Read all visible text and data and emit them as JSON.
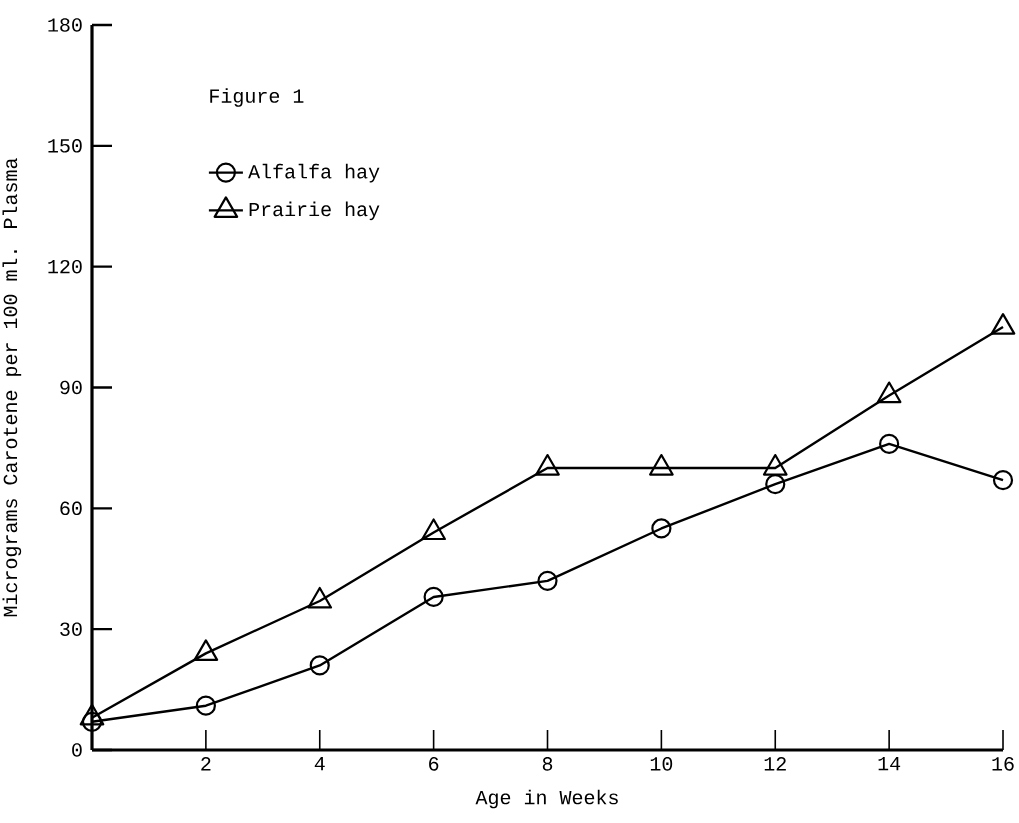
{
  "chart_data": {
    "type": "line",
    "xlabel": "Age in Weeks",
    "ylabel": "Micrograms Carotene per 100 ml. Plasma",
    "annotations": [
      "Figure 1"
    ],
    "x": [
      0,
      2,
      4,
      6,
      8,
      10,
      12,
      14,
      16
    ],
    "series": [
      {
        "name": "Alfalfa hay",
        "color": "#000000",
        "marker": "circle",
        "values": [
          7,
          11,
          21,
          38,
          42,
          55,
          66,
          76,
          67
        ]
      },
      {
        "name": "Prairie hay",
        "color": "#000000",
        "marker": "triangle",
        "values": [
          8,
          24,
          37,
          54,
          70,
          70,
          70,
          88,
          105
        ]
      }
    ],
    "xlim": [
      0,
      16
    ],
    "xticks": [
      2,
      4,
      6,
      8,
      10,
      12,
      14,
      16
    ],
    "ylim": [
      0,
      180
    ],
    "yticks": [
      0,
      30,
      60,
      90,
      120,
      150,
      180
    ],
    "legend": "top left",
    "grid": false,
    "line_style": "solid"
  }
}
